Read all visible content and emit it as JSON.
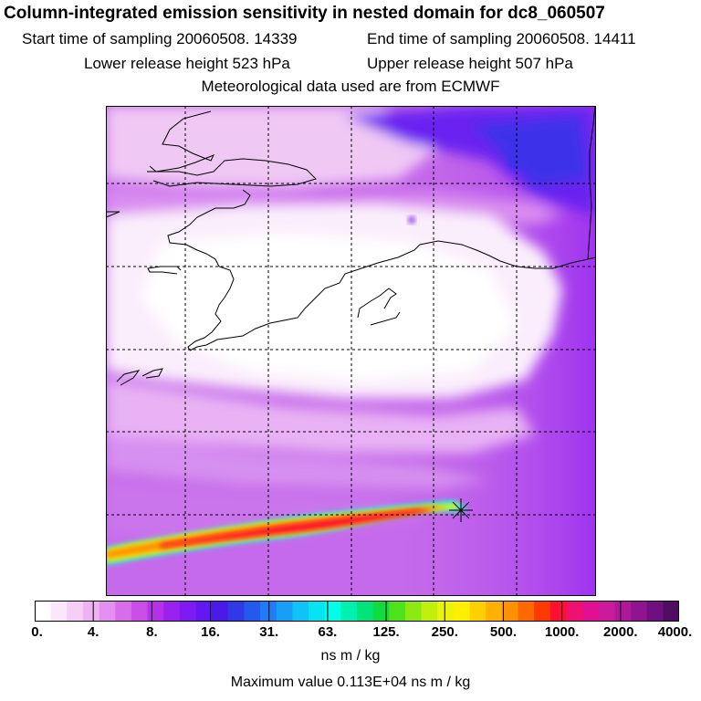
{
  "header": {
    "title": "Column-integrated emission sensitivity in nested domain for dc8_060507",
    "start_time": "Start time of sampling 20060508. 14339",
    "end_time": "End time of sampling 20060508. 14411",
    "lower_release": "Lower release height  523 hPa",
    "upper_release": "Upper release height  507 hPa",
    "met_data": "Meteorological data used are from ECMWF"
  },
  "colorbar": {
    "ticks": [
      "0.",
      "4.",
      "8.",
      "16.",
      "31.",
      "63.",
      "125.",
      "250.",
      "500.",
      "1000.",
      "2000.",
      "4000."
    ],
    "colors": [
      "#ffffff",
      "#fbe6fb",
      "#f5cdf5",
      "#efb3f3",
      "#e590f0",
      "#d86deb",
      "#c94de6",
      "#b530e8",
      "#9a22ee",
      "#7d1bf2",
      "#6318f2",
      "#4a1ae8",
      "#2f3ae6",
      "#2558ee",
      "#1f7cf4",
      "#189ef6",
      "#10c2f6",
      "#06e4f2",
      "#00ffe8",
      "#00f0b0",
      "#00e47a",
      "#10dc40",
      "#4ee21a",
      "#8cea14",
      "#c2f00e",
      "#eaf40a",
      "#fff000",
      "#ffd000",
      "#ffb000",
      "#ff9000",
      "#ff6a00",
      "#ff3a00",
      "#ff1030",
      "#f01070",
      "#e01090",
      "#cc1a9c",
      "#b0189a",
      "#901490",
      "#701080",
      "#500c60"
    ],
    "units": "ns m / kg",
    "maximum": "Maximum value  0.113E+04 ns m / kg"
  },
  "map": {
    "background": "#c56aea",
    "plume_colors": [
      "#00ffe8",
      "#fff000",
      "#ff9000",
      "#ff1030"
    ]
  }
}
